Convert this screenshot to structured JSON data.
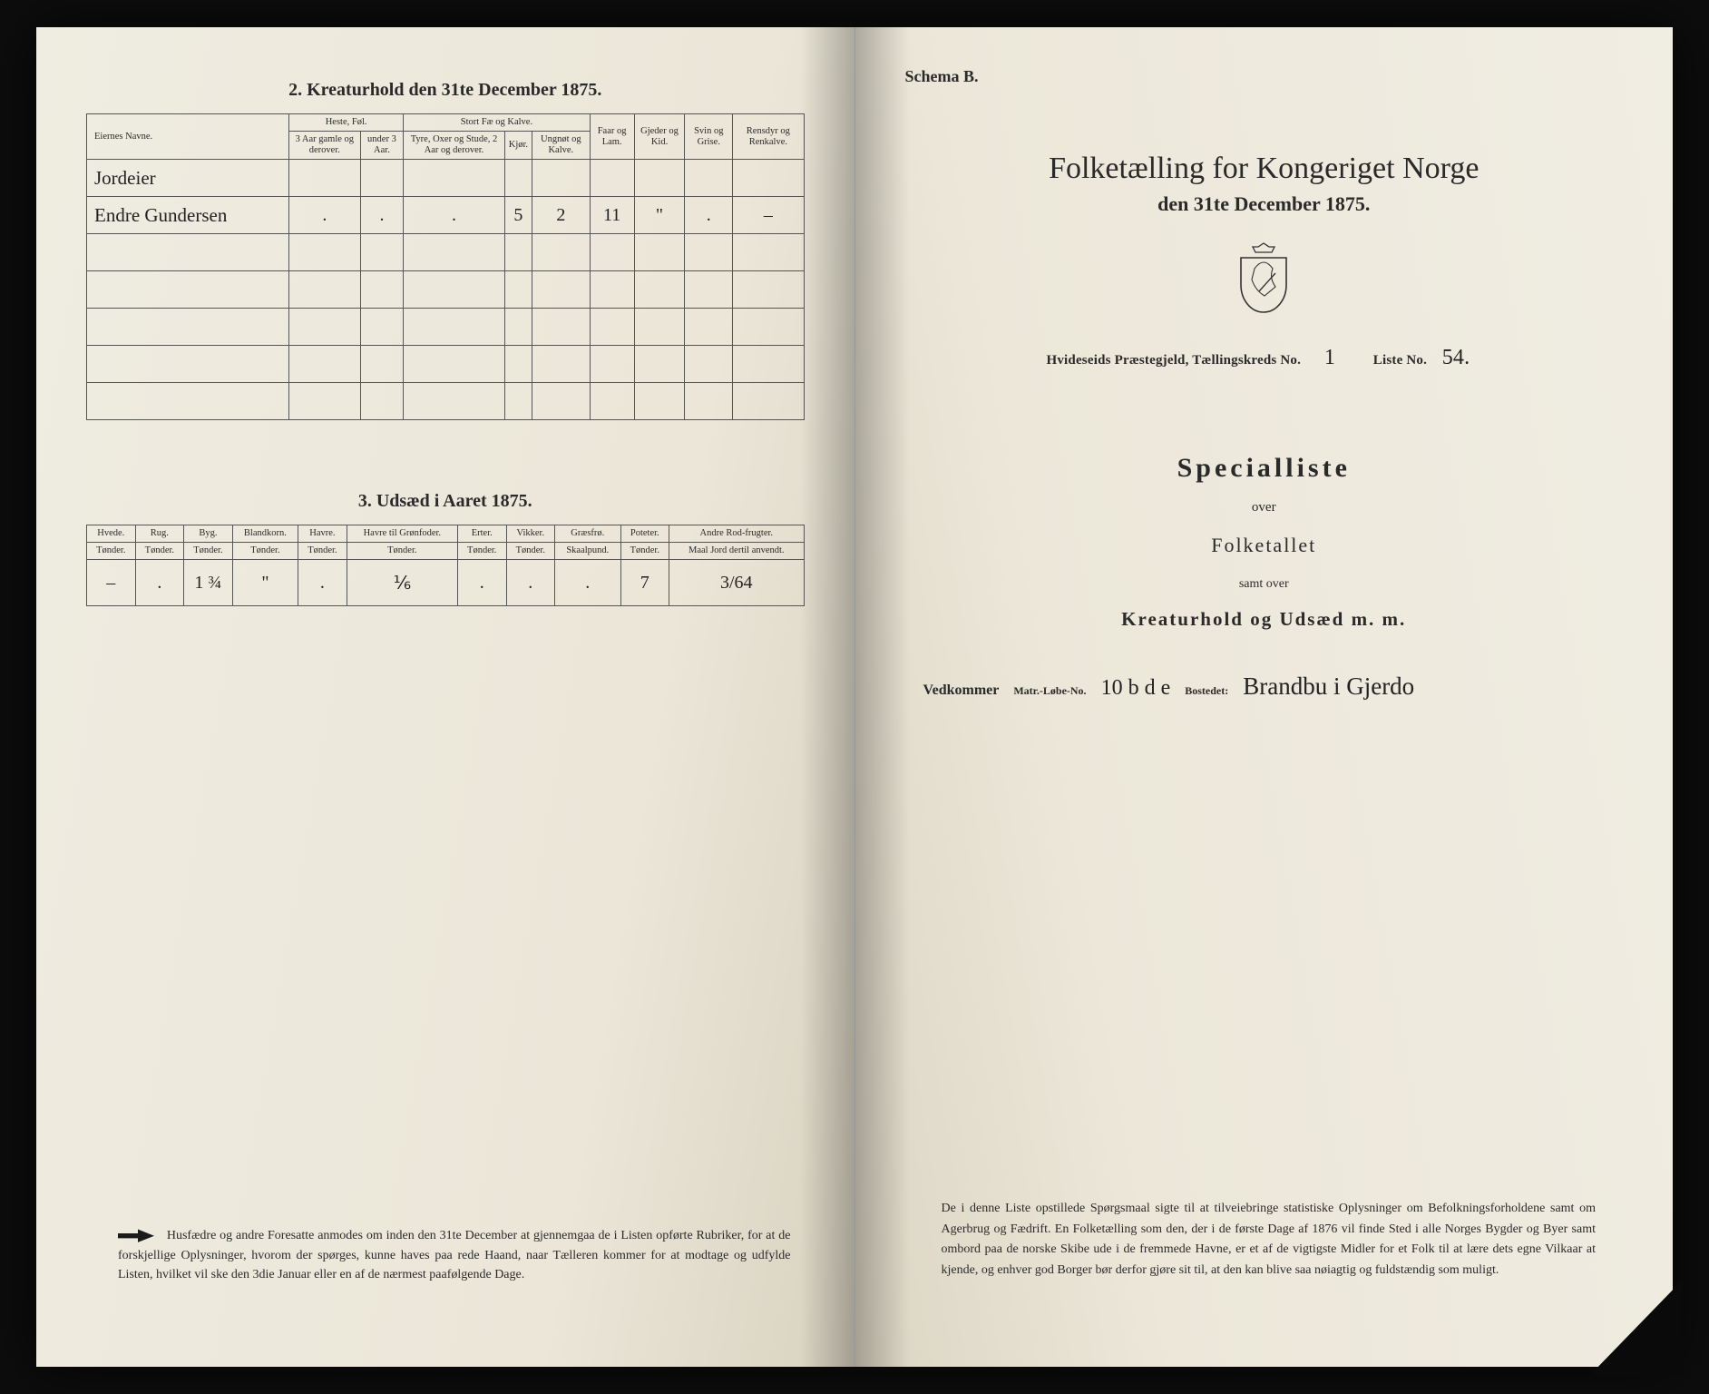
{
  "colors": {
    "page_bg_light": "#f2efe6",
    "page_bg_dark": "#e8e3d4",
    "ink": "#2a2a2a",
    "border": "#555555",
    "viewer_bg": "#0d0d0d"
  },
  "left": {
    "section2_title": "2.  Kreaturhold den 31te December 1875.",
    "table2": {
      "name_header": "Eiernes Navne.",
      "group_heste": "Heste, Føl.",
      "group_stort": "Stort Fæ og Kalve.",
      "col_heste_a": "3 Aar gamle og derover.",
      "col_heste_b": "under 3 Aar.",
      "col_stort_a": "Tyre, Oxer og Stude, 2 Aar og derover.",
      "col_stort_b": "Kjør.",
      "col_stort_c": "Ungnøt og Kalve.",
      "col_faar": "Faar og Lam.",
      "col_gjeder": "Gjeder og Kid.",
      "col_svin": "Svin og Grise.",
      "col_rensdyr": "Rensdyr og Renkalve.",
      "rows": [
        {
          "name": "Jordeier",
          "vals": [
            "",
            "",
            "",
            "",
            "",
            "",
            "",
            "",
            ""
          ]
        },
        {
          "name": "Endre Gundersen",
          "vals": [
            ".",
            ".",
            ".",
            "5",
            "2",
            "11",
            "\"",
            ".",
            "–"
          ]
        }
      ],
      "empty_rows": 5
    },
    "section3_title": "3.  Udsæd i Aaret 1875.",
    "table3": {
      "cols": [
        {
          "h": "Hvede.",
          "u": "Tønder."
        },
        {
          "h": "Rug.",
          "u": "Tønder."
        },
        {
          "h": "Byg.",
          "u": "Tønder."
        },
        {
          "h": "Blandkorn.",
          "u": "Tønder."
        },
        {
          "h": "Havre.",
          "u": "Tønder."
        },
        {
          "h": "Havre til Grønfoder.",
          "u": "Tønder."
        },
        {
          "h": "Erter.",
          "u": "Tønder."
        },
        {
          "h": "Vikker.",
          "u": "Tønder."
        },
        {
          "h": "Græsfrø.",
          "u": "Skaalpund."
        },
        {
          "h": "Poteter.",
          "u": "Tønder."
        },
        {
          "h": "Andre Rod-frugter.",
          "u": "Maal Jord dertil anvendt."
        }
      ],
      "row": [
        "–",
        ".",
        "1 ¾",
        "\"",
        ".",
        "⅙",
        ".",
        ".",
        ".",
        "7",
        "3/64"
      ]
    },
    "footnote": "Husfædre og andre Foresatte anmodes om inden den 31te December at gjennemgaa de i Listen opførte Rubriker, for at de forskjellige Oplysninger, hvorom der spørges, kunne haves paa rede Haand, naar Tælleren kommer for at modtage og udfylde Listen, hvilket vil ske den 3die Januar eller en af de nærmest paafølgende Dage."
  },
  "right": {
    "schema": "Schema B.",
    "title_line1": "Folketælling for Kongeriget Norge",
    "title_line2": "den 31te December 1875.",
    "district_prefix": "Hvideseids Præstegjeld, Tællingskreds No.",
    "district_no": "1",
    "liste_label": "Liste No.",
    "liste_no": "54.",
    "special": "Specialliste",
    "over": "over",
    "folketallet": "Folketallet",
    "samt": "samt over",
    "kreatur": "Kreaturhold og Udsæd m. m.",
    "vedkommer_label": "Vedkommer",
    "matr_label": "Matr.-Løbe-No.",
    "matr_val": "10 b d e",
    "bosted_label": "Bostedet:",
    "bosted_val": "Brandbu i Gjerdo",
    "footnote": "De i denne Liste opstillede Spørgsmaal sigte til at tilveiebringe statistiske Oplysninger om Befolkningsforholdene samt om Agerbrug og Fædrift.  En Folketælling som den, der i de første Dage af 1876 vil finde Sted i alle Norges Bygder og Byer samt ombord paa de norske Skibe ude i de fremmede Havne, er et af de vigtigste Midler for et Folk til at lære dets egne Vilkaar at kjende, og enhver god Borger bør derfor gjøre sit til, at den kan blive saa nøiagtig og fuldstændig som muligt."
  }
}
